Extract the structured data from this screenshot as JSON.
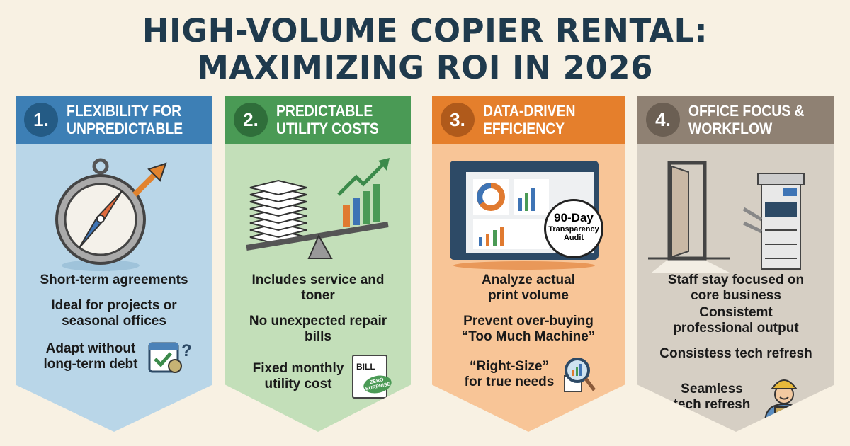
{
  "title": {
    "line1": "HIGH-VOLUME COPIER RENTAL:",
    "line2": "MAXIMIZING ROI IN 2026"
  },
  "panels": [
    {
      "number": "1.",
      "heading": "Flexibility for Unpredictable",
      "color": "#3d7fb5",
      "body_color": "#b9d6e8",
      "items": [
        "Short-term agreements",
        "Ideal for projects or seasonal offices",
        "Adapt without long-term debt"
      ],
      "icons": [
        "compass-icon",
        "calendar-check-icon"
      ]
    },
    {
      "number": "2.",
      "heading": "Predictable Utility Costs",
      "color": "#4a9a55",
      "body_color": "#c3dfb9",
      "items": [
        "Includes service and toner",
        "No unexpected repair bills",
        "Fixed monthly utility cost"
      ],
      "icons": [
        "paper-stack-scale-icon",
        "bill-icon"
      ],
      "bill_label": "BILL",
      "stamp_text": "ZERO SURPRISE"
    },
    {
      "number": "3.",
      "heading": "Data-Driven Efficiency",
      "color": "#e57f2c",
      "body_color": "#f8c597",
      "items": [
        "Analyze actual print volume",
        "Prevent over-buying “Too Much Machine”",
        "“Right-Size” for true needs"
      ],
      "icons": [
        "dashboard-monitor-icon",
        "magnifier-chart-icon"
      ],
      "badge": {
        "line1": "90-Day",
        "line2": "Transparency",
        "line3": "Audit"
      }
    },
    {
      "number": "4.",
      "heading": "Office Focus & Workflow",
      "color": "#8f8173",
      "body_color": "#d6cfc4",
      "items": [
        "Staff stay focused on core business",
        "Consistemt professional output",
        "Consistess tech refresh",
        "Seamless tech refresh"
      ],
      "icons": [
        "door-icon",
        "copier-icon",
        "technician-icon"
      ]
    }
  ]
}
